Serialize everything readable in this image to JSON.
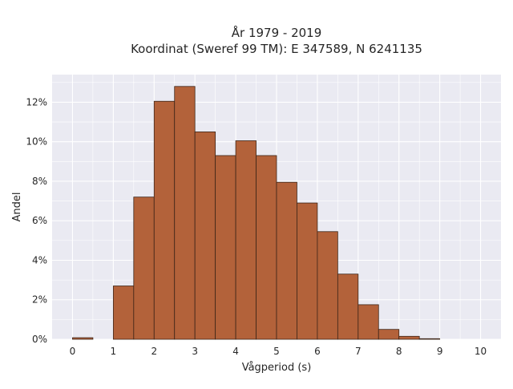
{
  "chart_data": {
    "type": "bar",
    "title_lines": [
      "År 1979 - 2019",
      "Koordinat (Sweref 99 TM): E 347589, N 6241135"
    ],
    "xlabel": "Vågperiod (s)",
    "ylabel": "Andel",
    "bin_width": 0.5,
    "bins": [
      {
        "x0": 0.0,
        "x1": 0.5,
        "value": 0.08
      },
      {
        "x0": 0.5,
        "x1": 1.0,
        "value": 0.0
      },
      {
        "x0": 1.0,
        "x1": 1.5,
        "value": 2.7
      },
      {
        "x0": 1.5,
        "x1": 2.0,
        "value": 7.2
      },
      {
        "x0": 2.0,
        "x1": 2.5,
        "value": 12.05
      },
      {
        "x0": 2.5,
        "x1": 3.0,
        "value": 12.8
      },
      {
        "x0": 3.0,
        "x1": 3.5,
        "value": 10.5
      },
      {
        "x0": 3.5,
        "x1": 4.0,
        "value": 9.3
      },
      {
        "x0": 4.0,
        "x1": 4.5,
        "value": 10.05
      },
      {
        "x0": 4.5,
        "x1": 5.0,
        "value": 9.3
      },
      {
        "x0": 5.0,
        "x1": 5.5,
        "value": 7.95
      },
      {
        "x0": 5.5,
        "x1": 6.0,
        "value": 6.9
      },
      {
        "x0": 6.0,
        "x1": 6.5,
        "value": 5.45
      },
      {
        "x0": 6.5,
        "x1": 7.0,
        "value": 3.3
      },
      {
        "x0": 7.0,
        "x1": 7.5,
        "value": 1.75
      },
      {
        "x0": 7.5,
        "x1": 8.0,
        "value": 0.5
      },
      {
        "x0": 8.0,
        "x1": 8.5,
        "value": 0.15
      },
      {
        "x0": 8.5,
        "x1": 9.0,
        "value": 0.03
      },
      {
        "x0": 9.0,
        "x1": 9.5,
        "value": 0.0
      },
      {
        "x0": 9.5,
        "x1": 10.0,
        "value": 0.0
      }
    ],
    "x_ticks": [
      0,
      1,
      2,
      3,
      4,
      5,
      6,
      7,
      8,
      9,
      10
    ],
    "x_tick_labels": [
      "0",
      "1",
      "2",
      "3",
      "4",
      "5",
      "6",
      "7",
      "8",
      "9",
      "10"
    ],
    "y_ticks": [
      0,
      2,
      4,
      6,
      8,
      10,
      12
    ],
    "y_tick_labels": [
      "0%",
      "2%",
      "4%",
      "6%",
      "8%",
      "10%",
      "12%"
    ],
    "xlim": [
      -0.5,
      10.5
    ],
    "ylim": [
      0,
      13.4
    ],
    "grid": true,
    "legend": "none",
    "colors": {
      "bar_fill": "#b3623a",
      "bar_edge": "#3d2518",
      "plot_background": "#eaeaf2",
      "grid": "#ffffff"
    }
  }
}
